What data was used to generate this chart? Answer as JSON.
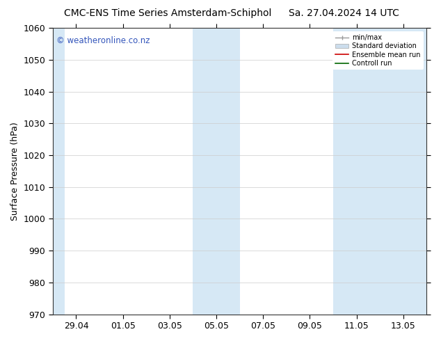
{
  "title": "CMC-ENS Time Series Amsterdam-Schiphol",
  "date_label": "Sa. 27.04.2024 14 UTC",
  "ylabel": "Surface Pressure (hPa)",
  "watermark": "© weatheronline.co.nz",
  "ylim": [
    970,
    1060
  ],
  "yticks": [
    970,
    980,
    990,
    1000,
    1010,
    1020,
    1030,
    1040,
    1050,
    1060
  ],
  "x_tick_labels": [
    "29.04",
    "01.05",
    "03.05",
    "05.05",
    "07.05",
    "09.05",
    "11.05",
    "13.05"
  ],
  "x_tick_positions": [
    1,
    3,
    5,
    7,
    9,
    11,
    13,
    15
  ],
  "xlim": [
    0,
    16
  ],
  "shaded_columns": [
    {
      "x_start": 0,
      "x_end": 0.5
    },
    {
      "x_start": 6,
      "x_end": 8
    },
    {
      "x_start": 12,
      "x_end": 16
    }
  ],
  "shade_color": "#d6e8f5",
  "background_color": "#ffffff",
  "grid_color": "#cccccc",
  "title_fontsize": 10,
  "axis_label_fontsize": 9,
  "tick_fontsize": 9,
  "watermark_color": "#3355bb",
  "legend_items": [
    {
      "label": "min/max",
      "color": "#aaaaaa",
      "style": "bar"
    },
    {
      "label": "Standard deviation",
      "color": "#cccccc",
      "style": "box"
    },
    {
      "label": "Ensemble mean run",
      "color": "#ff0000",
      "style": "line"
    },
    {
      "label": "Controll run",
      "color": "#007700",
      "style": "line"
    }
  ]
}
